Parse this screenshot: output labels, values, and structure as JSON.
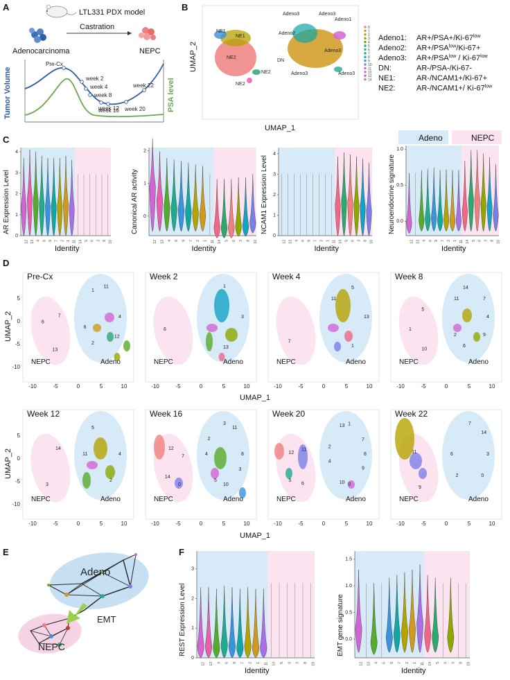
{
  "panels": {
    "A": {
      "letter": "A",
      "model_label": "LTL331 PDX model",
      "left_label": "Adenocarcinoma",
      "arrow_label": "Castration",
      "right_label": "NEPC",
      "y_left_label": "Tumor Volume",
      "y_right_label": "PSA level",
      "timepoints": [
        "Pre-Cx",
        "week 2",
        "week 4",
        "week 8",
        "week 12",
        "week 16",
        "week 20",
        "week 22"
      ]
    },
    "B": {
      "letter": "B",
      "xlabel": "UMAP_1",
      "ylabel": "UMAP_2",
      "cluster_labels": [
        "NE1",
        "NE1",
        "NE2",
        "NE2",
        "NE2",
        "DN",
        "Adeno1",
        "Adeno2",
        "Adeno3",
        "Adeno3",
        "Adeno3",
        "Adeno3",
        "Adeno3"
      ],
      "legend_clusters": [
        "0",
        "1",
        "2",
        "3",
        "4",
        "5",
        "6",
        "7",
        "8",
        "9",
        "10",
        "11",
        "12",
        "13",
        "14"
      ],
      "definitions": [
        {
          "name": "Adeno1:",
          "def": "AR+/PSA+/Ki-67",
          "sup": "low"
        },
        {
          "name": "Adeno2:",
          "def": "AR+/PSA",
          "sup": "low",
          "def2": "/Ki-67+"
        },
        {
          "name": "Adeno3:",
          "def": "AR+/PSA",
          "sup": "low",
          "def2": " / Ki-67",
          "sup2": "low"
        },
        {
          "name": "DN:",
          "def": "AR-/PSA-/Ki-67-"
        },
        {
          "name": "NE1:",
          "def": "AR-/NCAM1+/Ki-67+"
        },
        {
          "name": "NE2:",
          "def": "AR-/NCAM1+/ Ki-67",
          "sup": "low"
        }
      ]
    },
    "C": {
      "letter": "C",
      "legend_adeno": "Adeno",
      "legend_nepc": "NEPC",
      "xlabel": "Identity"
    },
    "D": {
      "letter": "D",
      "xlabel": "UMAP_1",
      "ylabel": "UMAP_2",
      "nepc_label": "NEPC",
      "adeno_label": "Adeno",
      "x_ticks": [
        "-10",
        "-5",
        "0",
        "5",
        "10"
      ],
      "y_ticks": [
        "5",
        "0",
        "-5",
        "-10"
      ],
      "subplots": [
        {
          "title": "Pre-Cx",
          "clusters": [
            "4",
            "12",
            "13",
            "2",
            "6",
            "6",
            "1",
            "11",
            "7"
          ]
        },
        {
          "title": "Week 2",
          "clusters": [
            "3",
            "13",
            "6",
            "1"
          ]
        },
        {
          "title": "Week 4",
          "clusters": [
            "13",
            "1",
            "7",
            "11",
            "5"
          ]
        },
        {
          "title": "Week 8",
          "clusters": [
            "4",
            "9",
            "10",
            "6",
            "2",
            "1",
            "11",
            "14",
            "5",
            "7"
          ]
        },
        {
          "title": "Week 12",
          "clusters": [
            "4",
            "2",
            "3",
            "11",
            "5",
            "14"
          ]
        },
        {
          "title": "Week 16",
          "clusters": [
            "8",
            "3",
            "0",
            "10",
            "5",
            "14",
            "4",
            "2",
            "12",
            "3",
            "11",
            "7"
          ]
        },
        {
          "title": "Week 20",
          "clusters": [
            "8",
            "9",
            "6",
            "0",
            "10",
            "5",
            "4",
            "2",
            "12",
            "13",
            "1",
            "11",
            "7"
          ]
        },
        {
          "title": "Week 22",
          "clusters": [
            "3",
            "0",
            "9",
            "2",
            "6",
            "11",
            "7",
            "14"
          ]
        }
      ]
    },
    "E": {
      "letter": "E",
      "adeno_label": "Adeno",
      "emt_label": "EMT",
      "nepc_label": "NEPC"
    },
    "F": {
      "letter": "F",
      "xlabel": "Identity"
    }
  },
  "chart_data": [
    {
      "type": "violin",
      "title": "",
      "ylabel": "AR Expression Level",
      "xlabel": "Identity",
      "categories": [
        "12",
        "13",
        "4",
        "6",
        "9",
        "7",
        "2",
        "1",
        "11",
        "14",
        "5",
        "0",
        "3",
        "8",
        "10"
      ],
      "values": [
        1.4,
        1.8,
        1.7,
        1.5,
        1.4,
        1.4,
        1.4,
        1.5,
        1.3,
        0,
        0,
        0,
        0,
        0,
        0
      ],
      "ylim": [
        0,
        4.2
      ],
      "yticks": [
        "0",
        "1",
        "2",
        "3",
        "4"
      ],
      "adeno_count": 9
    },
    {
      "type": "violin",
      "ylabel": "Canonical AR activity",
      "xlabel": "Identity",
      "categories": [
        "12",
        "13",
        "4",
        "6",
        "9",
        "7",
        "2",
        "1",
        "11",
        "14",
        "5",
        "0",
        "3",
        "8",
        "10"
      ],
      "values": [
        0.9,
        0.5,
        0.3,
        0.25,
        0.2,
        0.15,
        0.1,
        0.05,
        0.0,
        -0.35,
        -0.35,
        -0.35,
        -0.3,
        -0.3,
        -0.2
      ],
      "ylim": [
        -0.6,
        2.1
      ],
      "yticks": [
        "0",
        "1",
        "2"
      ],
      "adeno_count": 9
    },
    {
      "type": "violin",
      "ylabel": "NCAM1 Expression Level",
      "xlabel": "Identity",
      "categories": [
        "12",
        "13",
        "4",
        "6",
        "9",
        "7",
        "2",
        "1",
        "11",
        "14",
        "5",
        "0",
        "3",
        "8",
        "10"
      ],
      "values": [
        0,
        0,
        0,
        0,
        0,
        0,
        0,
        0,
        0,
        1.5,
        1.7,
        1.6,
        1.5,
        1.4,
        1.2
      ],
      "ylim": [
        0,
        4.3
      ],
      "yticks": [
        "0",
        "1",
        "2",
        "3",
        "4"
      ],
      "adeno_count": 9
    },
    {
      "type": "violin",
      "ylabel": "Neuroendocrine signature",
      "xlabel": "Identity",
      "categories": [
        "12",
        "13",
        "4",
        "6",
        "9",
        "7",
        "2",
        "1",
        "11",
        "14",
        "5",
        "0",
        "3",
        "8",
        "10"
      ],
      "values": [
        -0.02,
        0.0,
        0.02,
        0.04,
        0.06,
        0.02,
        0.03,
        0.02,
        0.02,
        0.15,
        0.3,
        0.3,
        0.25,
        0.2,
        0.1
      ],
      "ylim": [
        -0.2,
        1.05
      ],
      "yticks": [
        "0.0",
        "0.5",
        "1.0"
      ],
      "adeno_count": 9
    },
    {
      "type": "violin",
      "ylabel": "REST Expression Level",
      "xlabel": "Identity",
      "categories": [
        "12",
        "13",
        "4",
        "6",
        "9",
        "7",
        "2",
        "1",
        "11",
        "14",
        "5",
        "0",
        "3",
        "8",
        "10"
      ],
      "values": [
        0.4,
        0.4,
        0.35,
        0.45,
        0.4,
        0.35,
        0.4,
        0.35,
        0.35,
        0,
        0,
        0,
        0,
        0,
        0
      ],
      "ylim": [
        0,
        3.6
      ],
      "yticks": [
        "0",
        "1",
        "2",
        "3"
      ],
      "adeno_count": 9
    },
    {
      "type": "violin",
      "ylabel": "EMT gene signature",
      "xlabel": "Identity",
      "categories": [
        "12",
        "13",
        "4",
        "6",
        "9",
        "7",
        "2",
        "1",
        "11",
        "14",
        "5",
        "0",
        "3",
        "8",
        "10"
      ],
      "values": [
        0.2,
        0.0,
        -0.05,
        0.0,
        0.05,
        0.1,
        0.15,
        0.2,
        0.3,
        0.1,
        0.05,
        0.0,
        0.05,
        0.0,
        0.0
      ],
      "ylim": [
        -0.35,
        1.65
      ],
      "yticks": [
        "0.0",
        "0.5",
        "1.0",
        "1.5"
      ],
      "adeno_count": 9
    }
  ],
  "colors": {
    "adeno_bg": "#d6eaf7",
    "nepc_bg": "#fbe3ef",
    "blue_curve": "#2c5aa0",
    "green_curve": "#6aa84f",
    "cluster_palette": [
      "#f08080",
      "#d19a1e",
      "#b5a300",
      "#8fa800",
      "#57ab2c",
      "#2ea96e",
      "#1fab8e",
      "#10a7a4",
      "#13a3c4",
      "#3a93dc",
      "#7c7ee8",
      "#aa6ee6",
      "#d264d3",
      "#e85fae",
      "#f06787"
    ]
  }
}
